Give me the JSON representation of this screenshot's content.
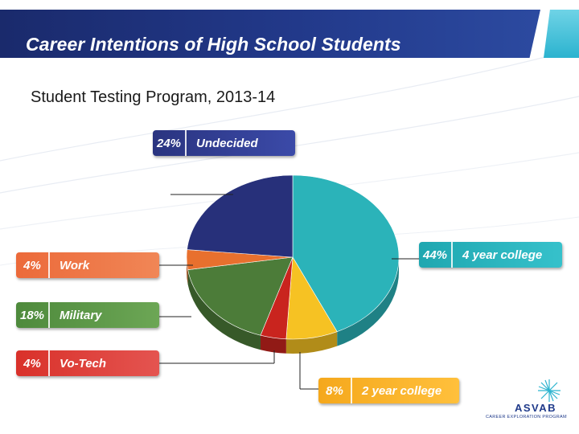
{
  "title": "Career Intentions of High School Students",
  "subtitle": "Student Testing Program, 2013-14",
  "chart_data": {
    "type": "pie",
    "slices": [
      {
        "label": "4 year college",
        "value": 44,
        "pct_label": "44%",
        "color": "#2bb3b9"
      },
      {
        "label": "2 year college",
        "value": 8,
        "pct_label": "8%",
        "color": "#f6c223"
      },
      {
        "label": "Vo-Tech",
        "value": 4,
        "pct_label": "4%",
        "color": "#c9241e"
      },
      {
        "label": "Military",
        "value": 18,
        "pct_label": "18%",
        "color": "#4c7c39"
      },
      {
        "label": "Work",
        "value": 4,
        "pct_label": "4%",
        "color": "#e8702e"
      },
      {
        "label": "Undecided",
        "value": 24,
        "pct_label": "24%",
        "color": "#27307a"
      }
    ]
  },
  "logo": {
    "name": "ASVAB",
    "sub": "CAREER EXPLORATION PROGRAM"
  },
  "colors": {
    "banner": "#1f3580",
    "accent": "#2bb3cf"
  }
}
